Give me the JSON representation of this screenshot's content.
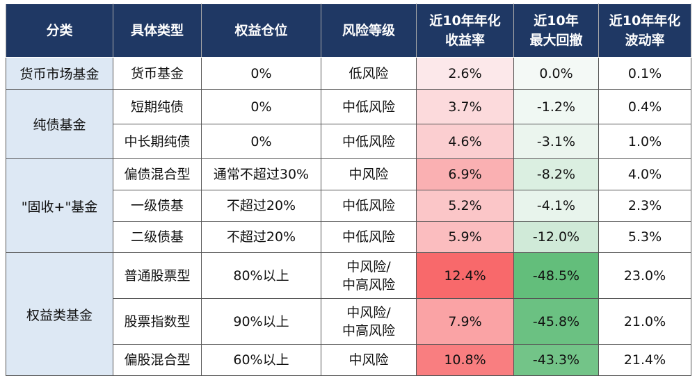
{
  "table": {
    "header": [
      "分类",
      "具体类型",
      "权益仓位",
      "风险等级",
      "近10年年化\n收益率",
      "近10年\n最大回撤",
      "近10年年化\n波动率"
    ],
    "groups": [
      {
        "category": "货币市场基金",
        "rows": [
          [
            "货币基金",
            "0%",
            "低风险",
            "2.6%",
            "0.0%",
            "0.1%"
          ]
        ]
      },
      {
        "category": "纯债基金",
        "rows": [
          [
            "短期纯债",
            "0%",
            "中低风险",
            "3.7%",
            "-1.2%",
            "0.4%"
          ],
          [
            "中长期纯债",
            "0%",
            "中低风险",
            "4.6%",
            "-3.1%",
            "1.0%"
          ]
        ]
      },
      {
        "category": "\"固收+\"基金",
        "rows": [
          [
            "偏债混合型",
            "通常不超过30%",
            "中风险",
            "6.9%",
            "-8.2%",
            "4.0%"
          ],
          [
            "一级债基",
            "不超过20%",
            "中低风险",
            "5.2%",
            "-4.1%",
            "2.3%"
          ],
          [
            "二级债基",
            "不超过20%",
            "中低风险",
            "5.9%",
            "-12.0%",
            "5.3%"
          ]
        ]
      },
      {
        "category": "权益类基金",
        "rows": [
          [
            "普通股票型",
            "80%以上",
            "中风险/\n中高风险",
            "12.4%",
            "-48.5%",
            "23.0%"
          ],
          [
            "股票指数型",
            "90%以上",
            "中风险/\n中高风险",
            "7.9%",
            "-45.8%",
            "21.0%"
          ],
          [
            "偏股混合型",
            "60%以上",
            "中风险",
            "10.8%",
            "-43.3%",
            "21.4%"
          ]
        ]
      }
    ]
  }
}
